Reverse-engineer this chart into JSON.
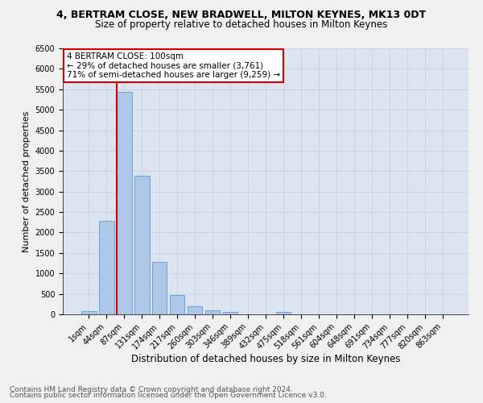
{
  "title1": "4, BERTRAM CLOSE, NEW BRADWELL, MILTON KEYNES, MK13 0DT",
  "title2": "Size of property relative to detached houses in Milton Keynes",
  "xlabel": "Distribution of detached houses by size in Milton Keynes",
  "ylabel": "Number of detached properties",
  "bar_color": "#aec6e8",
  "bar_edge_color": "#5a9bd4",
  "grid_color": "#c8d4e4",
  "bg_color": "#dce4f0",
  "fig_color": "#f0f0f0",
  "categories": [
    "1sqm",
    "44sqm",
    "87sqm",
    "131sqm",
    "174sqm",
    "217sqm",
    "260sqm",
    "303sqm",
    "346sqm",
    "389sqm",
    "432sqm",
    "475sqm",
    "518sqm",
    "561sqm",
    "604sqm",
    "648sqm",
    "691sqm",
    "734sqm",
    "777sqm",
    "820sqm",
    "863sqm"
  ],
  "values": [
    70,
    2280,
    5430,
    3380,
    1290,
    470,
    205,
    95,
    55,
    0,
    0,
    55,
    0,
    0,
    0,
    0,
    0,
    0,
    0,
    0,
    0
  ],
  "vline_idx": 2,
  "vline_color": "#cc0000",
  "annotation_text": "4 BERTRAM CLOSE: 100sqm\n← 29% of detached houses are smaller (3,761)\n71% of semi-detached houses are larger (9,259) →",
  "annotation_box_color": "#ffffff",
  "annotation_box_edge": "#cc0000",
  "ylim": [
    0,
    6500
  ],
  "yticks": [
    0,
    500,
    1000,
    1500,
    2000,
    2500,
    3000,
    3500,
    4000,
    4500,
    5000,
    5500,
    6000,
    6500
  ],
  "footer1": "Contains HM Land Registry data © Crown copyright and database right 2024.",
  "footer2": "Contains public sector information licensed under the Open Government Licence v3.0.",
  "title1_fontsize": 9,
  "title2_fontsize": 8.5,
  "xlabel_fontsize": 8.5,
  "ylabel_fontsize": 8,
  "tick_fontsize": 7,
  "annotation_fontsize": 7.5,
  "footer_fontsize": 6.5
}
